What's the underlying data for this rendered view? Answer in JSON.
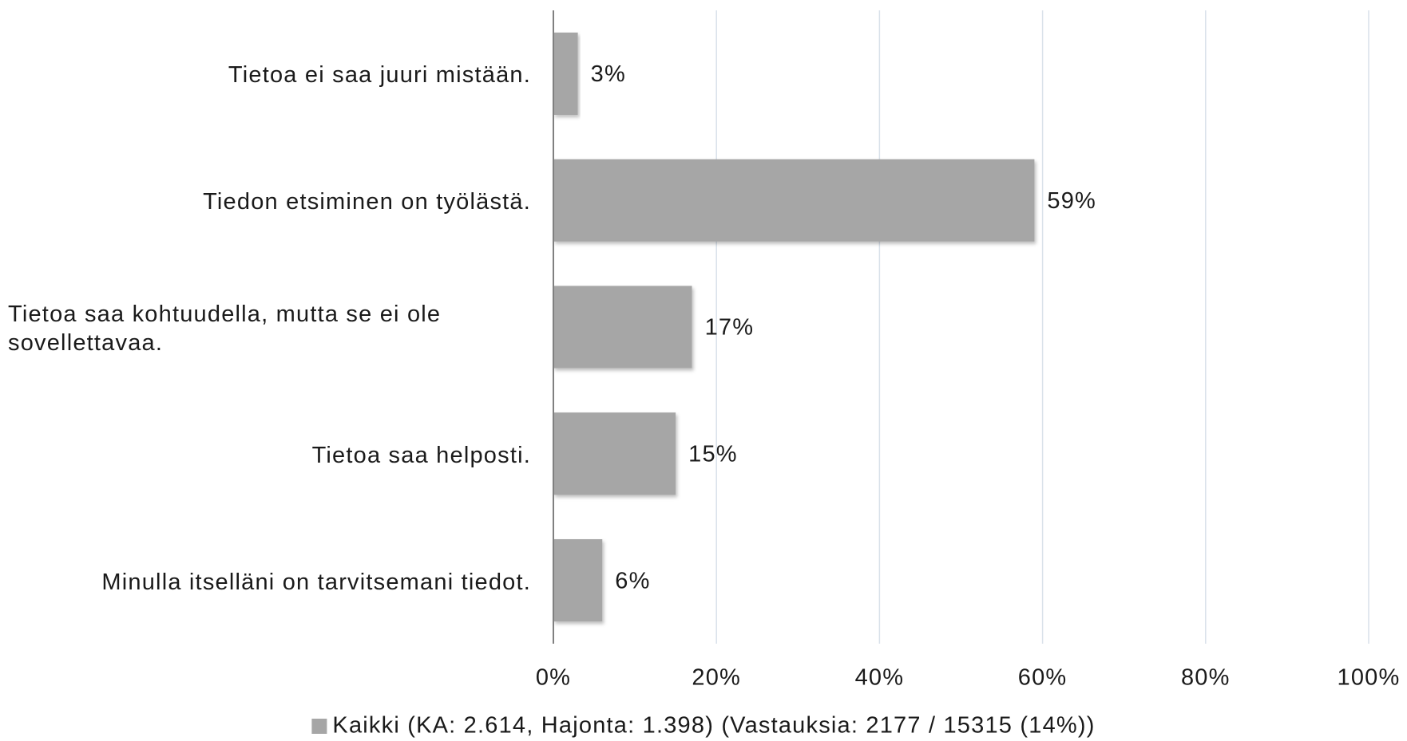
{
  "chart_data": {
    "type": "bar",
    "orientation": "horizontal",
    "categories": [
      "Tietoa ei saa juuri mistään.",
      "Tiedon etsiminen on työlästä.",
      "Tietoa saa kohtuudella, mutta se ei ole sovellettavaa.",
      "Tietoa saa helposti.",
      "Minulla itselläni on tarvitsemani tiedot."
    ],
    "series": [
      {
        "name": "Kaikki (KA: 2.614, Hajonta: 1.398) (Vastauksia: 2177 / 15315 (14%))",
        "color": "#a6a6a6",
        "values": [
          3,
          59,
          17,
          15,
          6
        ],
        "value_labels": [
          "3%",
          "59%",
          "17%",
          "15%",
          "6%"
        ]
      }
    ],
    "xlim": [
      0,
      100
    ],
    "xticks": [
      {
        "value": 0,
        "label": "0%"
      },
      {
        "value": 20,
        "label": "20%"
      },
      {
        "value": 40,
        "label": "40%"
      },
      {
        "value": 60,
        "label": "60%"
      },
      {
        "value": 80,
        "label": "80%"
      },
      {
        "value": 100,
        "label": "100%"
      }
    ],
    "grid": true,
    "legend": "bottom"
  }
}
